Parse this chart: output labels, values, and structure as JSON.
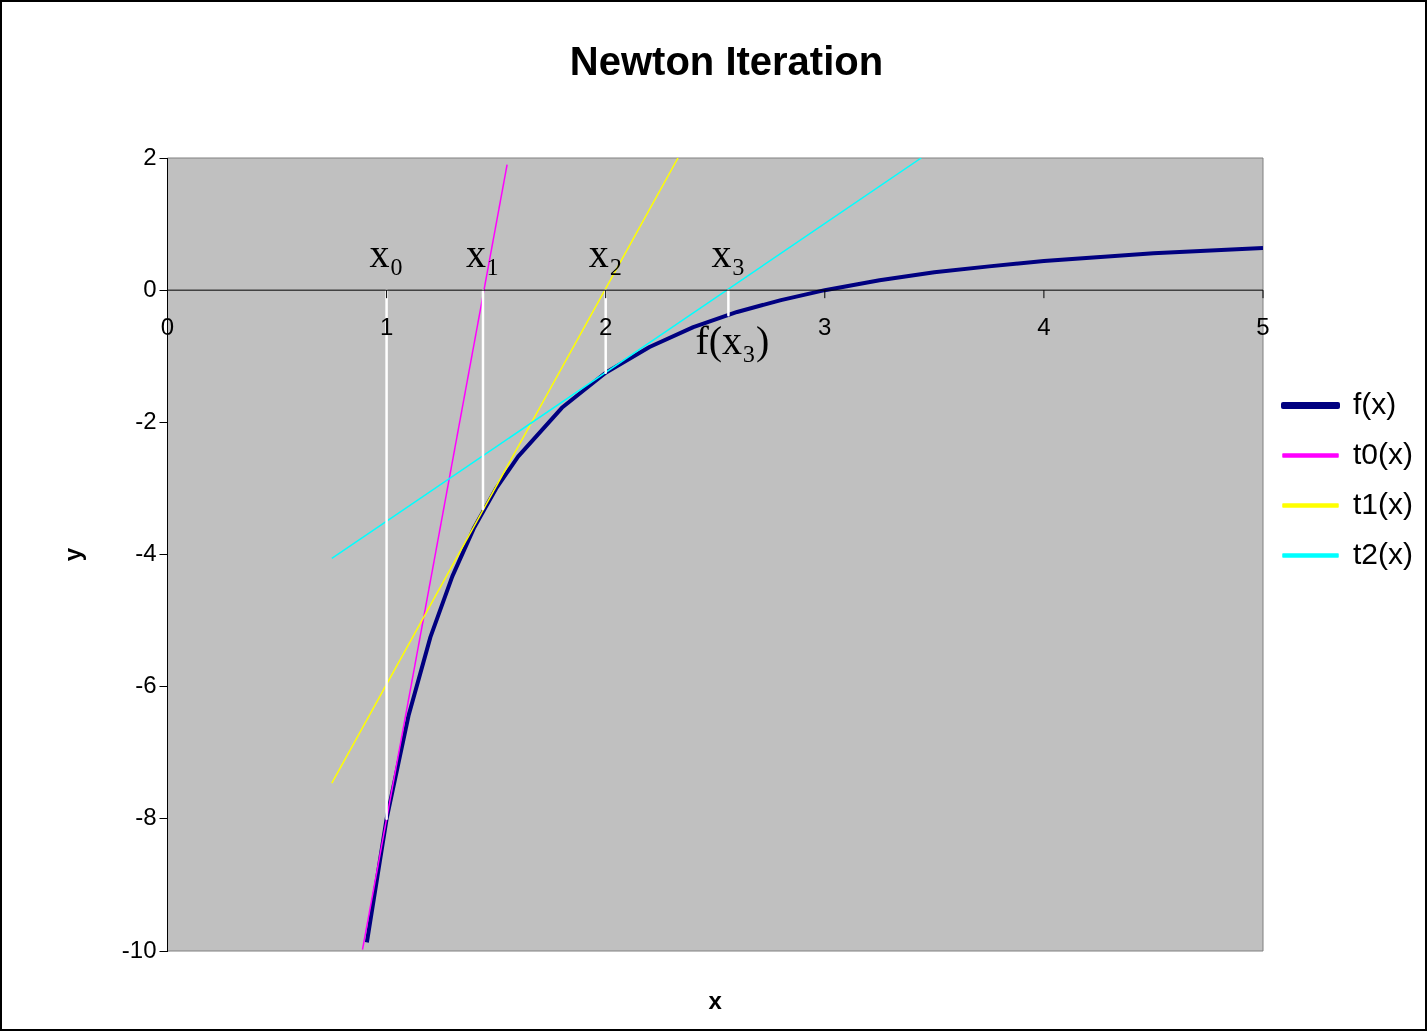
{
  "chart_data": {
    "type": "line",
    "title": "Newton Iteration",
    "xlabel": "x",
    "ylabel": "y",
    "xlim": [
      0,
      5
    ],
    "xticks": [
      0,
      1,
      2,
      3,
      4,
      5
    ],
    "ylim": [
      -10,
      2
    ],
    "yticks": [
      -10,
      -8,
      -6,
      -4,
      -2,
      0,
      2
    ],
    "grid": false,
    "legend": "right",
    "marker": "none",
    "line_style": "solid",
    "series": [
      {
        "name": "f(x)",
        "color": "#000080",
        "x": [
          0.91,
          1,
          1.1,
          1.2,
          1.3,
          1.4,
          1.5,
          1.6,
          1.8,
          2,
          2.2,
          2.4,
          2.6,
          2.8,
          3,
          3.25,
          3.5,
          3.75,
          4,
          4.5,
          5
        ],
        "values": [
          -9.87,
          -8,
          -6.44,
          -5.25,
          -4.33,
          -3.59,
          -3,
          -2.52,
          -1.78,
          -1.25,
          -0.86,
          -0.56,
          -0.33,
          -0.15,
          0,
          0.15,
          0.27,
          0.36,
          0.44,
          0.56,
          0.64
        ]
      },
      {
        "name": "t0(x)",
        "color": "#ff00ff",
        "x": [
          0.89,
          1.55
        ],
        "values": [
          -9.98,
          1.9
        ]
      },
      {
        "name": "t1(x)",
        "color": "#ffff00",
        "x": [
          0.75,
          2.33
        ],
        "values": [
          -7.46,
          2
        ]
      },
      {
        "name": "t2(x)",
        "color": "#00ffff",
        "x": [
          0.75,
          3.44
        ],
        "values": [
          -4.06,
          2
        ]
      },
      {
        "color": "#ffffff",
        "x": [
          1,
          1,
          null,
          1.44,
          1.44,
          null,
          2,
          2,
          null,
          2.56,
          2.56
        ],
        "values": [
          0,
          -8,
          null,
          0,
          -3.31,
          null,
          0,
          -1.25,
          null,
          0,
          -0.38
        ]
      }
    ],
    "annotations": [
      "x₀",
      "x₁",
      "x₂",
      "x₃",
      "f(x₃)"
    ]
  }
}
